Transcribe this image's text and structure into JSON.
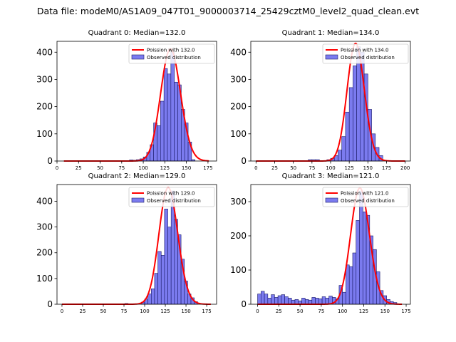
{
  "figure": {
    "title": "Data file: modeM0/AS1A09_047T01_9000003714_25429cztM0_level2_quad_clean.evt"
  },
  "colors": {
    "fit": "#ff0000",
    "bar_fill": "#7b7bef",
    "bar_edge": "#1a1a66"
  },
  "chart_data": [
    {
      "type": "bar",
      "title": "Quadrant 0: Median=132.0",
      "xlim": [
        0,
        185
      ],
      "ylim": [
        0,
        440
      ],
      "xticks": [
        0,
        25,
        50,
        75,
        100,
        125,
        150,
        175
      ],
      "yticks": [
        0,
        100,
        200,
        300,
        400
      ],
      "bin_width": 4,
      "bins": [
        {
          "x": 84,
          "y": 4
        },
        {
          "x": 88,
          "y": 3
        },
        {
          "x": 92,
          "y": 5
        },
        {
          "x": 96,
          "y": 8
        },
        {
          "x": 100,
          "y": 15
        },
        {
          "x": 104,
          "y": 32
        },
        {
          "x": 108,
          "y": 60
        },
        {
          "x": 112,
          "y": 140
        },
        {
          "x": 116,
          "y": 130
        },
        {
          "x": 120,
          "y": 220
        },
        {
          "x": 124,
          "y": 340
        },
        {
          "x": 128,
          "y": 320
        },
        {
          "x": 132,
          "y": 400
        },
        {
          "x": 136,
          "y": 290
        },
        {
          "x": 140,
          "y": 280
        },
        {
          "x": 144,
          "y": 190
        },
        {
          "x": 148,
          "y": 140
        },
        {
          "x": 152,
          "y": 70
        },
        {
          "x": 156,
          "y": 5
        }
      ],
      "fit": {
        "lambda": 132.0,
        "scale": 2.2,
        "x_range": [
          8,
          176
        ]
      },
      "legend": {
        "fit_label": "Poission with 132.0",
        "hist_label": "Observed distribution"
      }
    },
    {
      "type": "bar",
      "title": "Quadrant 1: Median=134.0",
      "xlim": [
        -7,
        207
      ],
      "ylim": [
        0,
        440
      ],
      "xticks": [
        0,
        25,
        50,
        75,
        100,
        125,
        150,
        175,
        200
      ],
      "yticks": [
        0,
        100,
        200,
        300,
        400
      ],
      "bin_width": 5,
      "bins": [
        {
          "x": 70,
          "y": 5
        },
        {
          "x": 75,
          "y": 5
        },
        {
          "x": 80,
          "y": 5
        },
        {
          "x": 95,
          "y": 5
        },
        {
          "x": 100,
          "y": 10
        },
        {
          "x": 105,
          "y": 20
        },
        {
          "x": 110,
          "y": 40
        },
        {
          "x": 115,
          "y": 90
        },
        {
          "x": 120,
          "y": 180
        },
        {
          "x": 125,
          "y": 270
        },
        {
          "x": 130,
          "y": 350
        },
        {
          "x": 135,
          "y": 420
        },
        {
          "x": 140,
          "y": 400
        },
        {
          "x": 145,
          "y": 320
        },
        {
          "x": 150,
          "y": 190
        },
        {
          "x": 155,
          "y": 100
        },
        {
          "x": 160,
          "y": 50
        },
        {
          "x": 165,
          "y": 20
        }
      ],
      "fit": {
        "lambda": 134.0,
        "scale": 2.45,
        "x_range": [
          0,
          200
        ]
      },
      "legend": {
        "fit_label": "Poission with 134.0",
        "hist_label": "Observed distribution"
      }
    },
    {
      "type": "bar",
      "title": "Quadrant 2: Median=129.0",
      "xlim": [
        -6,
        187
      ],
      "ylim": [
        0,
        465
      ],
      "xticks": [
        0,
        25,
        50,
        75,
        100,
        125,
        150,
        175
      ],
      "yticks": [
        0,
        100,
        200,
        300,
        400
      ],
      "bin_width": 4,
      "bins": [
        {
          "x": 76,
          "y": 3
        },
        {
          "x": 96,
          "y": 8
        },
        {
          "x": 100,
          "y": 20
        },
        {
          "x": 104,
          "y": 40
        },
        {
          "x": 108,
          "y": 60
        },
        {
          "x": 112,
          "y": 120
        },
        {
          "x": 116,
          "y": 205
        },
        {
          "x": 120,
          "y": 190
        },
        {
          "x": 124,
          "y": 370
        },
        {
          "x": 128,
          "y": 300
        },
        {
          "x": 132,
          "y": 440
        },
        {
          "x": 136,
          "y": 330
        },
        {
          "x": 140,
          "y": 270
        },
        {
          "x": 144,
          "y": 175
        },
        {
          "x": 148,
          "y": 90
        },
        {
          "x": 152,
          "y": 40
        },
        {
          "x": 156,
          "y": 25
        },
        {
          "x": 160,
          "y": 10
        }
      ],
      "fit": {
        "lambda": 129.0,
        "scale": 2.3,
        "x_range": [
          0,
          180
        ]
      },
      "legend": {
        "fit_label": "Poission with 129.0",
        "hist_label": "Observed distribution"
      }
    },
    {
      "type": "bar",
      "title": "Quadrant 3: Median=121.0",
      "xlim": [
        -8,
        180
      ],
      "ylim": [
        0,
        350
      ],
      "xticks": [
        0,
        25,
        50,
        75,
        100,
        125,
        150,
        175
      ],
      "yticks": [
        0,
        100,
        200,
        300
      ],
      "bin_width": 4,
      "bins": [
        {
          "x": 0,
          "y": 30
        },
        {
          "x": 4,
          "y": 38
        },
        {
          "x": 8,
          "y": 30
        },
        {
          "x": 12,
          "y": 18
        },
        {
          "x": 16,
          "y": 28
        },
        {
          "x": 20,
          "y": 20
        },
        {
          "x": 24,
          "y": 25
        },
        {
          "x": 28,
          "y": 28
        },
        {
          "x": 32,
          "y": 22
        },
        {
          "x": 36,
          "y": 18
        },
        {
          "x": 40,
          "y": 12
        },
        {
          "x": 44,
          "y": 14
        },
        {
          "x": 48,
          "y": 10
        },
        {
          "x": 52,
          "y": 18
        },
        {
          "x": 56,
          "y": 14
        },
        {
          "x": 60,
          "y": 12
        },
        {
          "x": 64,
          "y": 20
        },
        {
          "x": 68,
          "y": 18
        },
        {
          "x": 72,
          "y": 16
        },
        {
          "x": 76,
          "y": 22
        },
        {
          "x": 80,
          "y": 18
        },
        {
          "x": 84,
          "y": 24
        },
        {
          "x": 88,
          "y": 20
        },
        {
          "x": 92,
          "y": 16
        },
        {
          "x": 96,
          "y": 55
        },
        {
          "x": 100,
          "y": 35
        },
        {
          "x": 104,
          "y": 115
        },
        {
          "x": 108,
          "y": 110
        },
        {
          "x": 112,
          "y": 150
        },
        {
          "x": 116,
          "y": 245
        },
        {
          "x": 120,
          "y": 330
        },
        {
          "x": 124,
          "y": 270
        },
        {
          "x": 128,
          "y": 260
        },
        {
          "x": 132,
          "y": 200
        },
        {
          "x": 136,
          "y": 160
        },
        {
          "x": 140,
          "y": 95
        },
        {
          "x": 144,
          "y": 40
        },
        {
          "x": 148,
          "y": 25
        },
        {
          "x": 152,
          "y": 14
        },
        {
          "x": 156,
          "y": 8
        },
        {
          "x": 160,
          "y": 5
        }
      ],
      "fit": {
        "lambda": 121.0,
        "scale": 1.9,
        "x_range": [
          0,
          170
        ]
      },
      "legend": {
        "fit_label": "Poission with 121.0",
        "hist_label": "Observed distribution"
      }
    }
  ]
}
